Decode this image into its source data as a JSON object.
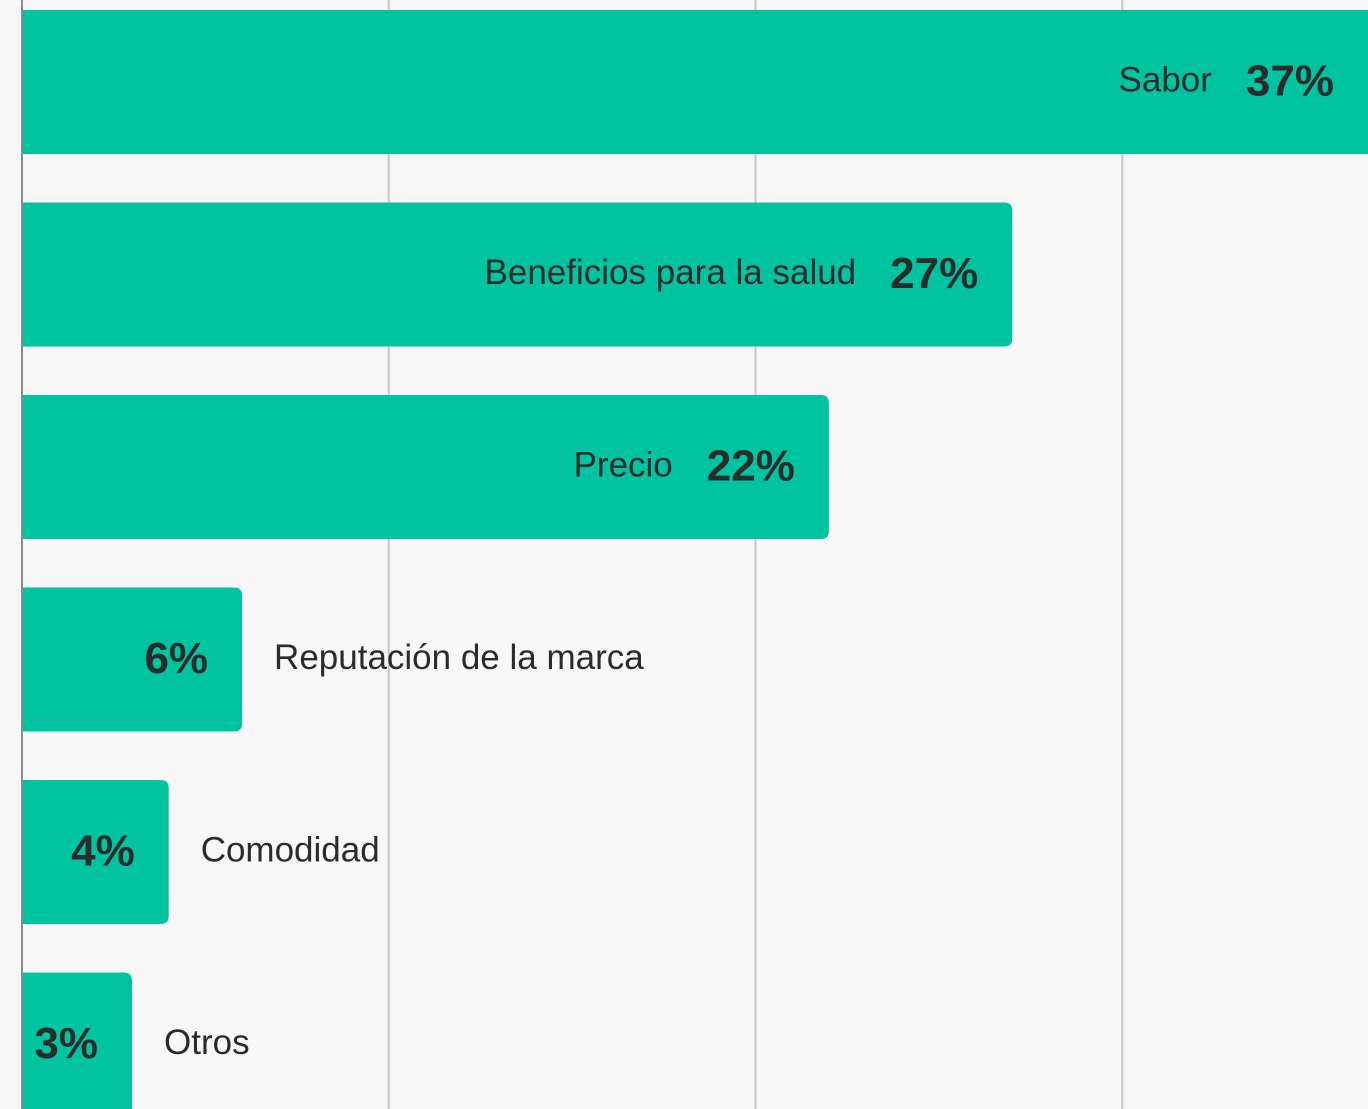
{
  "chart_data": {
    "type": "bar",
    "orientation": "horizontal",
    "categories": [
      "Sabor",
      "Beneficios para la salud",
      "Precio",
      "Reputación de la marca",
      "Comodidad",
      "Otros"
    ],
    "values": [
      37,
      27,
      22,
      6,
      4,
      3
    ],
    "value_labels": [
      "37%",
      "27%",
      "22%",
      "6%",
      "4%",
      "3%"
    ],
    "color": "#00c4a0",
    "xlim": [
      0,
      36.7
    ],
    "xticks": [
      0,
      10,
      20,
      30
    ],
    "grid": true
  }
}
